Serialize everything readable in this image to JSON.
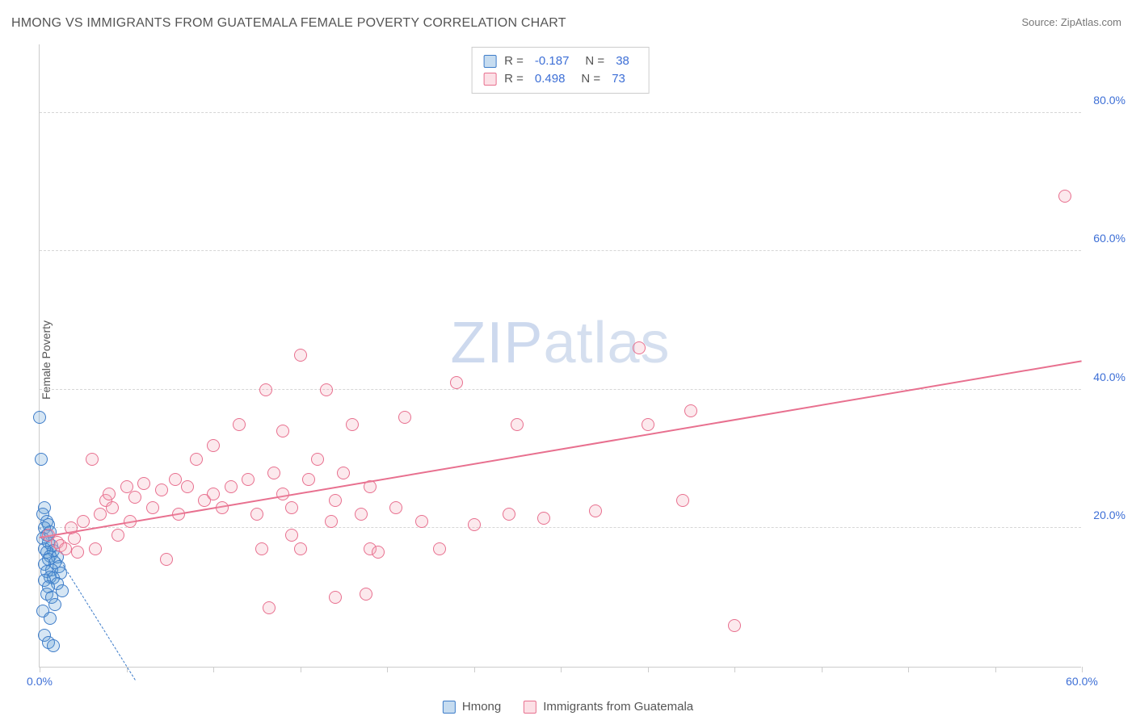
{
  "title": "HMONG VS IMMIGRANTS FROM GUATEMALA FEMALE POVERTY CORRELATION CHART",
  "source": "Source: ZipAtlas.com",
  "y_axis_label": "Female Poverty",
  "watermark": {
    "bold": "ZIP",
    "light": "atlas"
  },
  "chart": {
    "type": "scatter",
    "background_color": "#ffffff",
    "grid_color": "#d6d6d6",
    "grid_dashed": true,
    "axis_color": "#cccccc",
    "tick_label_color": "#3d6fd6",
    "tick_fontsize": 14,
    "title_fontsize": 16,
    "xlim": [
      0,
      60
    ],
    "ylim": [
      0,
      90
    ],
    "y_ticks": [
      20,
      40,
      60,
      80
    ],
    "y_tick_labels": [
      "20.0%",
      "40.0%",
      "60.0%",
      "80.0%"
    ],
    "x_ticks": [
      0,
      5,
      10,
      15,
      20,
      25,
      30,
      35,
      40,
      45,
      50,
      55,
      60
    ],
    "x_tick_labels": {
      "0": "0.0%",
      "60": "60.0%"
    },
    "marker_radius": 8,
    "marker_border_width": 1.2,
    "marker_fill_opacity": 0.25,
    "series": [
      {
        "name": "Hmong",
        "color": "#5b9bd5",
        "border_color": "#3d7cc9",
        "R": "-0.187",
        "N": "38",
        "trend": {
          "x1": 0,
          "y1": 20,
          "x2": 5.5,
          "y2": -2,
          "dashed": true,
          "width": 1.5
        },
        "points": [
          [
            0,
            36
          ],
          [
            0.1,
            30
          ],
          [
            0.3,
            23
          ],
          [
            0.2,
            22
          ],
          [
            0.4,
            21
          ],
          [
            0.5,
            20.5
          ],
          [
            0.3,
            20
          ],
          [
            0.6,
            19.5
          ],
          [
            0.4,
            19
          ],
          [
            0.2,
            18.5
          ],
          [
            0.5,
            18
          ],
          [
            0.7,
            17.5
          ],
          [
            0.3,
            17
          ],
          [
            0.8,
            16.8
          ],
          [
            0.4,
            16.5
          ],
          [
            0.6,
            16
          ],
          [
            1.0,
            15.8
          ],
          [
            0.5,
            15.5
          ],
          [
            0.9,
            15
          ],
          [
            0.3,
            14.8
          ],
          [
            1.1,
            14.5
          ],
          [
            0.7,
            14
          ],
          [
            0.4,
            13.8
          ],
          [
            1.2,
            13.5
          ],
          [
            0.6,
            13
          ],
          [
            0.8,
            12.8
          ],
          [
            0.3,
            12.5
          ],
          [
            1.0,
            12
          ],
          [
            0.5,
            11.5
          ],
          [
            1.3,
            11
          ],
          [
            0.4,
            10.5
          ],
          [
            0.7,
            10
          ],
          [
            0.9,
            9
          ],
          [
            0.2,
            8
          ],
          [
            0.6,
            7
          ],
          [
            0.3,
            4.5
          ],
          [
            0.5,
            3.5
          ],
          [
            0.8,
            3
          ]
        ]
      },
      {
        "name": "Immigrants from Guatemala",
        "color": "#f5a6b8",
        "border_color": "#e8708f",
        "R": "0.498",
        "N": "73",
        "trend": {
          "x1": 0,
          "y1": 18.5,
          "x2": 60,
          "y2": 44,
          "dashed": false,
          "width": 2.2
        },
        "points": [
          [
            0.5,
            19
          ],
          [
            1,
            18
          ],
          [
            1.2,
            17.5
          ],
          [
            1.5,
            17
          ],
          [
            1.8,
            20
          ],
          [
            2,
            18.5
          ],
          [
            2.2,
            16.5
          ],
          [
            2.5,
            21
          ],
          [
            3,
            30
          ],
          [
            3.2,
            17
          ],
          [
            3.5,
            22
          ],
          [
            3.8,
            24
          ],
          [
            4,
            25
          ],
          [
            4.2,
            23
          ],
          [
            4.5,
            19
          ],
          [
            5,
            26
          ],
          [
            5.2,
            21
          ],
          [
            5.5,
            24.5
          ],
          [
            6,
            26.5
          ],
          [
            6.5,
            23
          ],
          [
            7,
            25.5
          ],
          [
            7.3,
            15.5
          ],
          [
            7.8,
            27
          ],
          [
            8,
            22
          ],
          [
            8.5,
            26
          ],
          [
            9,
            30
          ],
          [
            9.5,
            24
          ],
          [
            10,
            32
          ],
          [
            10,
            25
          ],
          [
            10.5,
            23
          ],
          [
            11,
            26
          ],
          [
            11.5,
            35
          ],
          [
            12,
            27
          ],
          [
            12.5,
            22
          ],
          [
            12.8,
            17
          ],
          [
            13,
            40
          ],
          [
            13.2,
            8.5
          ],
          [
            13.5,
            28
          ],
          [
            14,
            34
          ],
          [
            14,
            25
          ],
          [
            14.5,
            23
          ],
          [
            15,
            45
          ],
          [
            15,
            17
          ],
          [
            15.5,
            27
          ],
          [
            16,
            30
          ],
          [
            16.5,
            40
          ],
          [
            16.8,
            21
          ],
          [
            17,
            24
          ],
          [
            17,
            10
          ],
          [
            17.5,
            28
          ],
          [
            18,
            35
          ],
          [
            18.5,
            22
          ],
          [
            18.8,
            10.5
          ],
          [
            19,
            26
          ],
          [
            19,
            17
          ],
          [
            19.5,
            16.5
          ],
          [
            20.5,
            23
          ],
          [
            21,
            36
          ],
          [
            22,
            21
          ],
          [
            23,
            17
          ],
          [
            24,
            41
          ],
          [
            25,
            20.5
          ],
          [
            27,
            22
          ],
          [
            27.5,
            35
          ],
          [
            29,
            21.5
          ],
          [
            32,
            22.5
          ],
          [
            34.5,
            46
          ],
          [
            35,
            35
          ],
          [
            37,
            24
          ],
          [
            37.5,
            37
          ],
          [
            40,
            6
          ],
          [
            59,
            68
          ],
          [
            14.5,
            19
          ]
        ]
      }
    ]
  },
  "stats_box": {
    "border_color": "#cccccc",
    "rows": [
      {
        "swatch": 0,
        "r_label": "R =",
        "n_label": "N ="
      },
      {
        "swatch": 1,
        "r_label": "R =",
        "n_label": "N ="
      }
    ]
  },
  "legend": {
    "items": [
      {
        "series": 0
      },
      {
        "series": 1
      }
    ]
  }
}
